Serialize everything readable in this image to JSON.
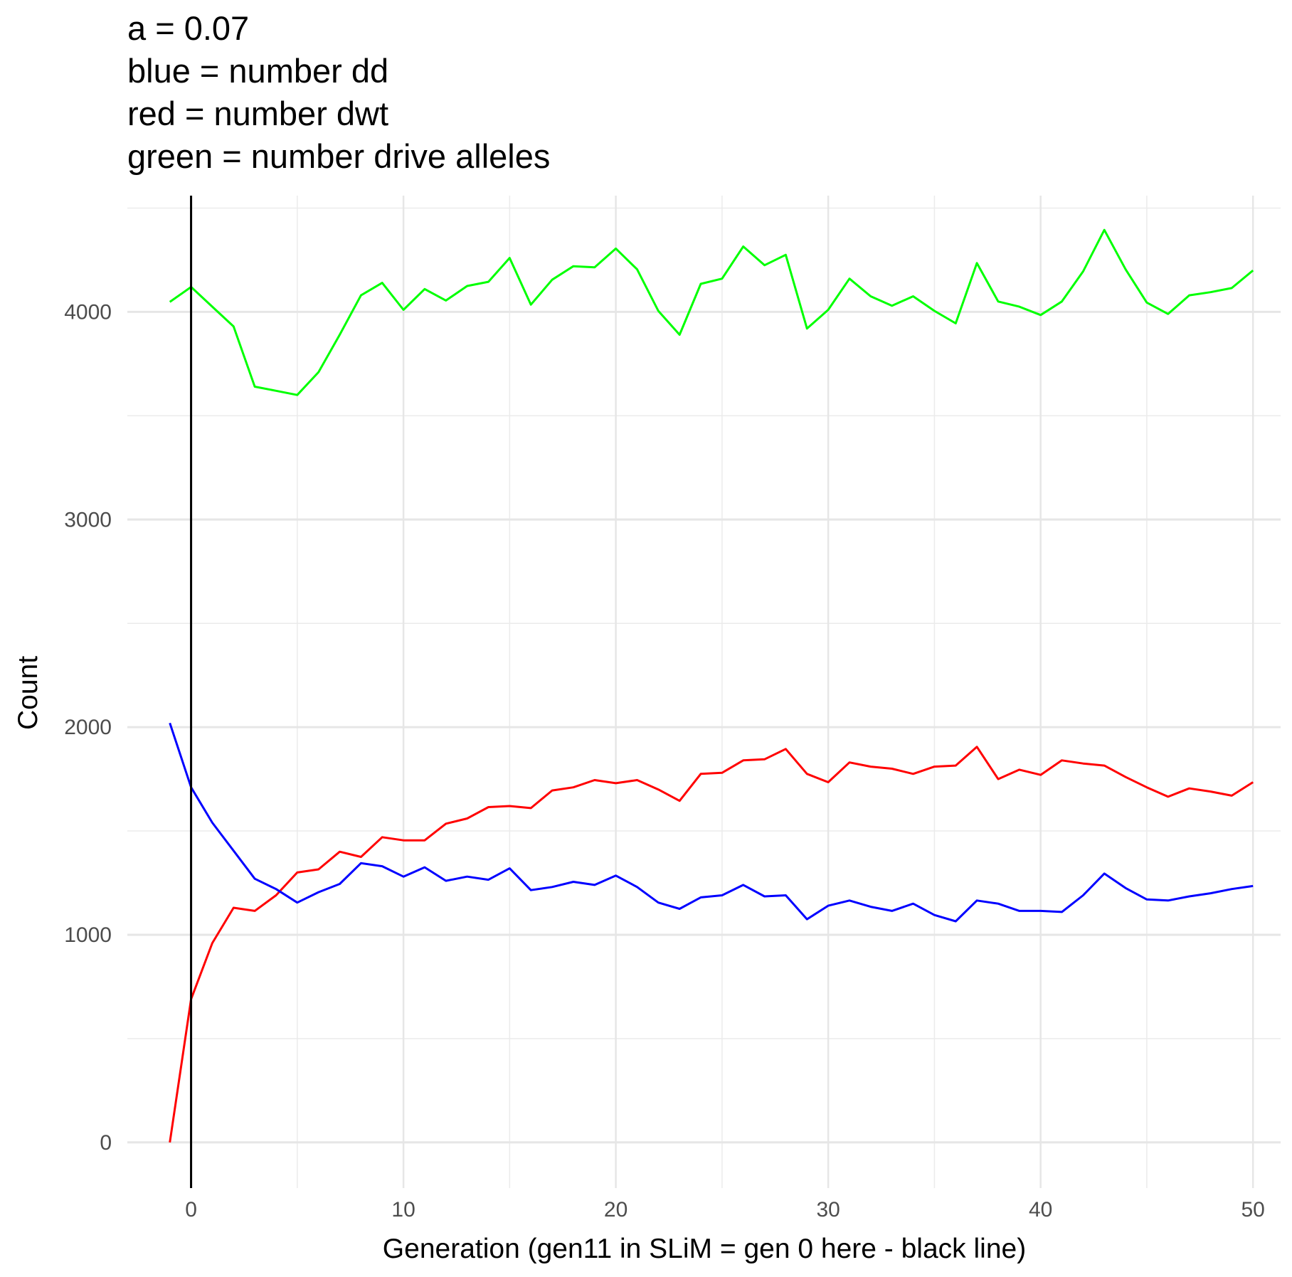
{
  "chart_data": {
    "type": "line",
    "title_lines": [
      "a = 0.07",
      "blue = number dd",
      "red = number dwt",
      "green = number drive alleles"
    ],
    "xlabel": "Generation (gen11 in SLiM = gen 0 here - black line)",
    "ylabel": "Count",
    "xlim": [
      -3,
      51.3
    ],
    "ylim": [
      -220,
      4560
    ],
    "x_ticks": [
      0,
      10,
      20,
      30,
      40,
      50
    ],
    "y_ticks": [
      0,
      1000,
      2000,
      3000,
      4000
    ],
    "x_minor": [
      5,
      15,
      25,
      35,
      45
    ],
    "y_minor": [
      500,
      1500,
      2500,
      3500,
      4500
    ],
    "grid": true,
    "vline": {
      "x": 0,
      "color": "#000000"
    },
    "x": [
      -1,
      0,
      1,
      2,
      3,
      4,
      5,
      6,
      7,
      8,
      9,
      10,
      11,
      12,
      13,
      14,
      15,
      16,
      17,
      18,
      19,
      20,
      21,
      22,
      23,
      24,
      25,
      26,
      27,
      28,
      29,
      30,
      31,
      32,
      33,
      34,
      35,
      36,
      37,
      38,
      39,
      40,
      41,
      42,
      43,
      44,
      45,
      46,
      47,
      48,
      49,
      50
    ],
    "series": [
      {
        "color": "#00ff00",
        "values": [
          4048,
          4120,
          4025,
          3930,
          3640,
          3620,
          3600,
          3710,
          3890,
          4080,
          4140,
          4010,
          4110,
          4055,
          4125,
          4145,
          4260,
          4035,
          4155,
          4220,
          4215,
          4305,
          4205,
          4005,
          3890,
          4135,
          4160,
          4315,
          4225,
          4275,
          3920,
          4010,
          4160,
          4075,
          4030,
          4075,
          4005,
          3945,
          4235,
          4050,
          4025,
          3985,
          4050,
          4195,
          4395,
          4205,
          4045,
          3990,
          4080,
          4095,
          4115,
          4200
        ]
      },
      {
        "color": "#ff0000",
        "values": [
          0,
          690,
          960,
          1130,
          1115,
          1190,
          1300,
          1315,
          1400,
          1375,
          1470,
          1455,
          1455,
          1535,
          1560,
          1615,
          1620,
          1610,
          1695,
          1710,
          1745,
          1730,
          1745,
          1700,
          1645,
          1775,
          1780,
          1840,
          1845,
          1895,
          1775,
          1735,
          1830,
          1810,
          1800,
          1775,
          1810,
          1815,
          1905,
          1750,
          1795,
          1770,
          1840,
          1825,
          1815,
          1760,
          1710,
          1665,
          1705,
          1690,
          1670,
          1735
        ]
      },
      {
        "color": "#0000ff",
        "values": [
          2020,
          1710,
          1540,
          1405,
          1270,
          1220,
          1155,
          1205,
          1245,
          1345,
          1330,
          1280,
          1325,
          1260,
          1280,
          1265,
          1320,
          1215,
          1230,
          1255,
          1240,
          1285,
          1230,
          1155,
          1125,
          1180,
          1190,
          1240,
          1185,
          1190,
          1075,
          1140,
          1165,
          1135,
          1115,
          1150,
          1095,
          1065,
          1165,
          1150,
          1115,
          1115,
          1110,
          1190,
          1295,
          1225,
          1170,
          1165,
          1185,
          1200,
          1220,
          1235
        ]
      }
    ]
  }
}
